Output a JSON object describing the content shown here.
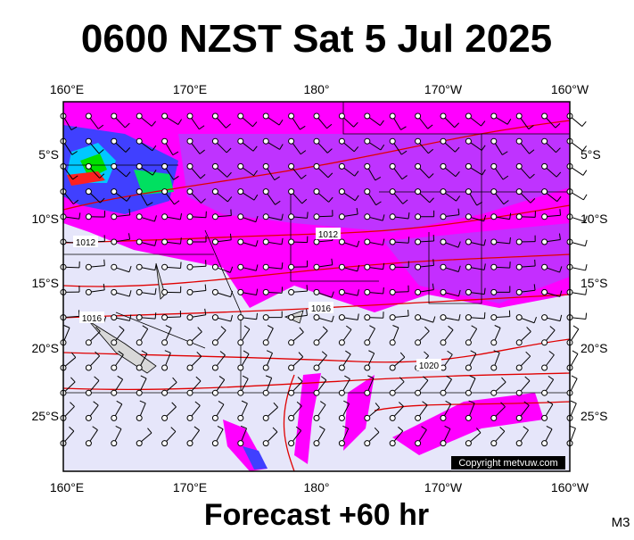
{
  "title": "0600 NZST Sat 5 Jul 2025",
  "footer": "Forecast +60 hr",
  "model": "M3",
  "copyright": "Copyright metvuw.com",
  "longitude_labels": [
    "160°E",
    "170°E",
    "180°",
    "170°W",
    "160°W"
  ],
  "latitude_labels": [
    "5°S",
    "10°S",
    "15°S",
    "20°S",
    "25°S"
  ],
  "isobar_labels": [
    "1012",
    "1012",
    "1016",
    "1016",
    "1020"
  ]
}
